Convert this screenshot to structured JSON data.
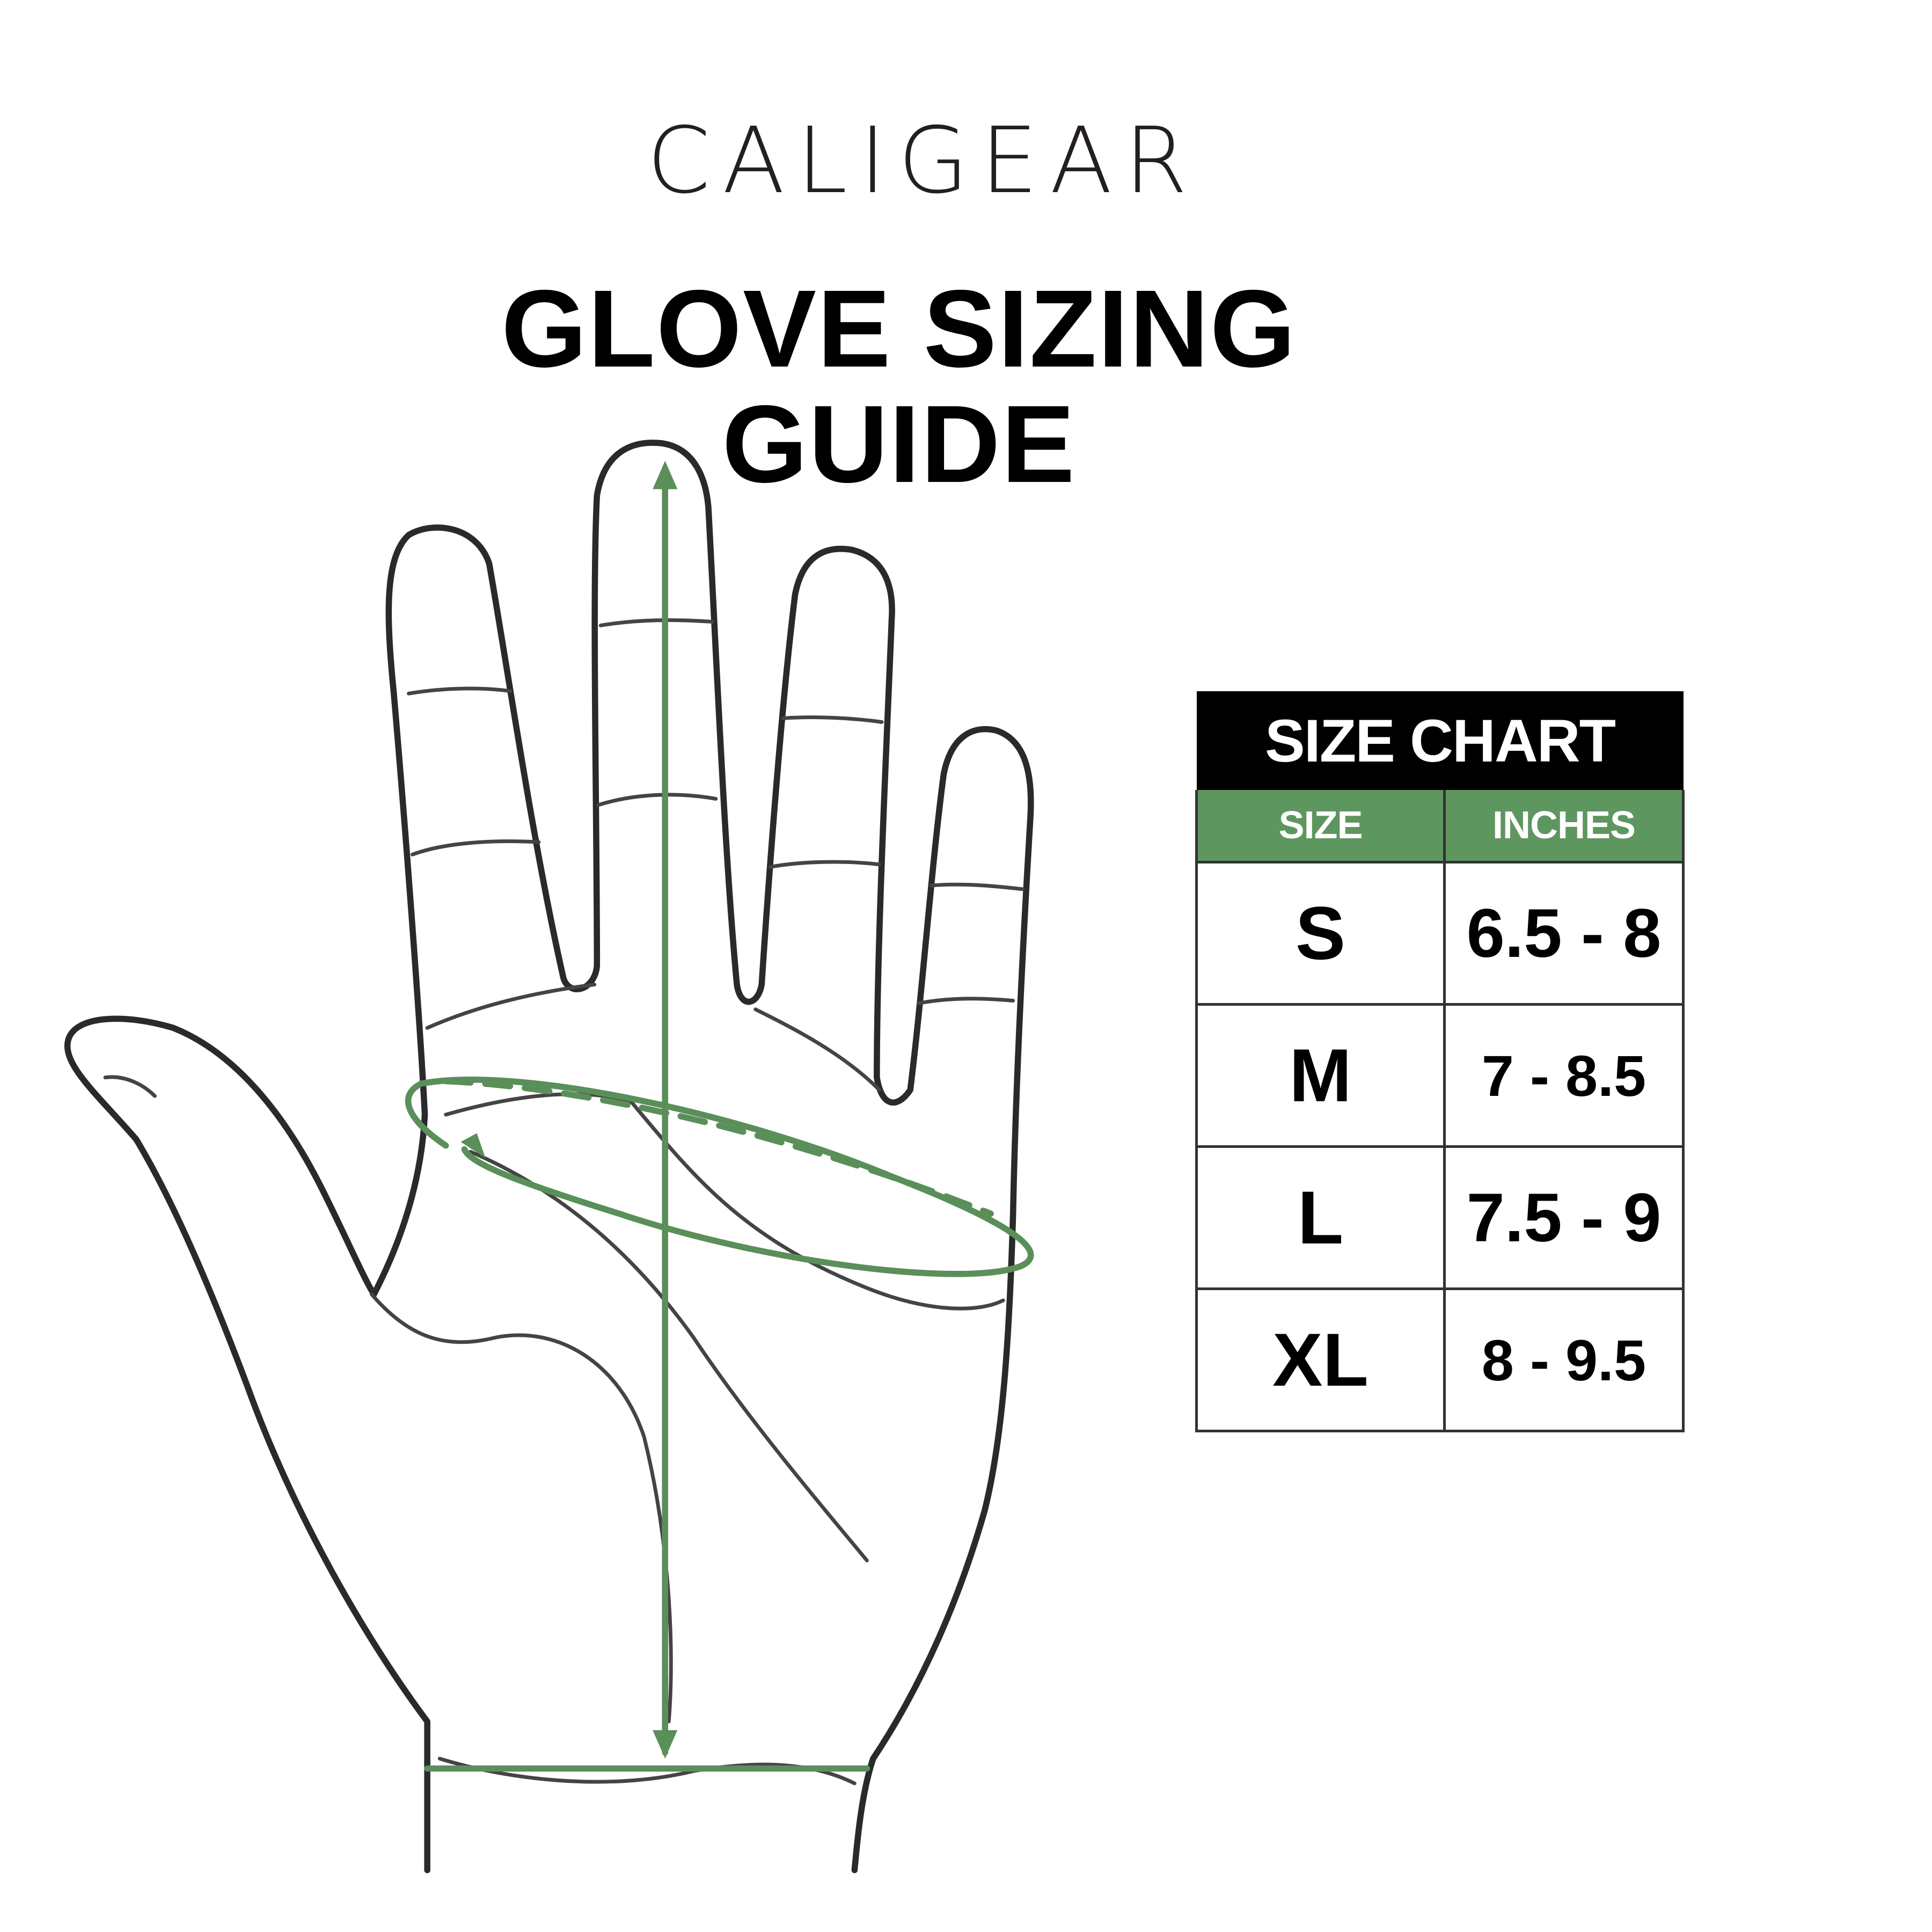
{
  "brand": {
    "logo_text": "CALIGEAR"
  },
  "title": "GLOVE SIZING GUIDE",
  "colors": {
    "accent_green": "#5e9660",
    "measure_line": "#5a8f5a",
    "outline": "#2a2a2a"
  },
  "illustration": {
    "subject": "hand-palm-outline",
    "measurements": [
      "hand-length-arrow",
      "palm-circumference-loop"
    ]
  },
  "size_chart": {
    "title": "SIZE CHART",
    "columns": [
      "SIZE",
      "INCHES"
    ],
    "rows": [
      {
        "size": "S",
        "inches": "6.5 - 8"
      },
      {
        "size": "M",
        "inches": "7 - 8.5"
      },
      {
        "size": "L",
        "inches": "7.5 - 9"
      },
      {
        "size": "XL",
        "inches": "8 - 9.5"
      }
    ]
  }
}
